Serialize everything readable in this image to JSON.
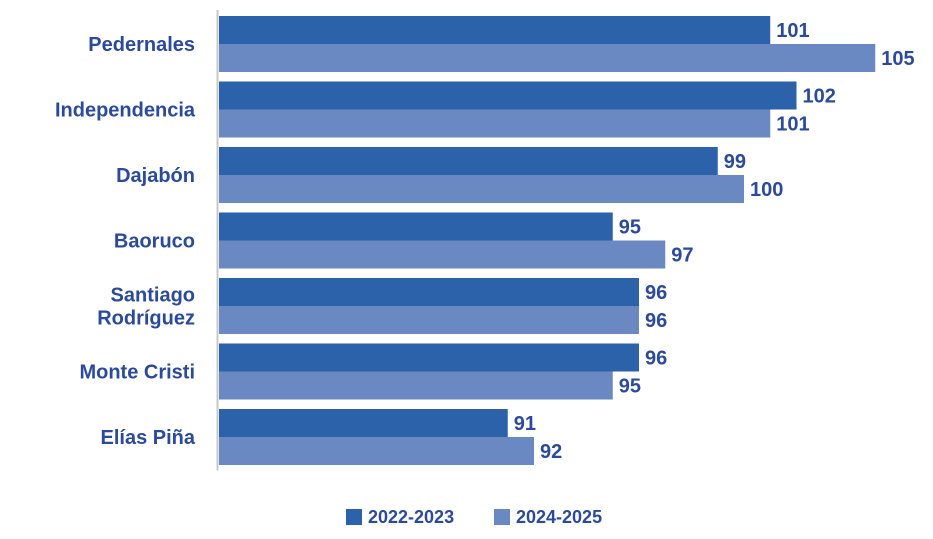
{
  "chart_data": {
    "type": "bar",
    "orientation": "horizontal",
    "categories": [
      "Pedernales",
      "Independencia",
      "Dajabón",
      "Baoruco",
      "Santiago Rodríguez",
      "Monte Cristi",
      "Elías Piña"
    ],
    "series": [
      {
        "name": "2022-2023",
        "values": [
          101,
          102,
          99,
          95,
          96,
          96,
          91
        ],
        "color": "#2b62a9"
      },
      {
        "name": "2024-2025",
        "values": [
          105,
          101,
          100,
          97,
          96,
          95,
          92
        ],
        "color": "#6a89c2"
      }
    ],
    "title": "",
    "xlabel": "",
    "ylabel": "",
    "xlim": [
      80,
      105
    ],
    "data_labels": true,
    "grid": false,
    "legend": "bottom-center",
    "text_color": "#2b4a9b",
    "axis_color": "#c8c8c8"
  }
}
